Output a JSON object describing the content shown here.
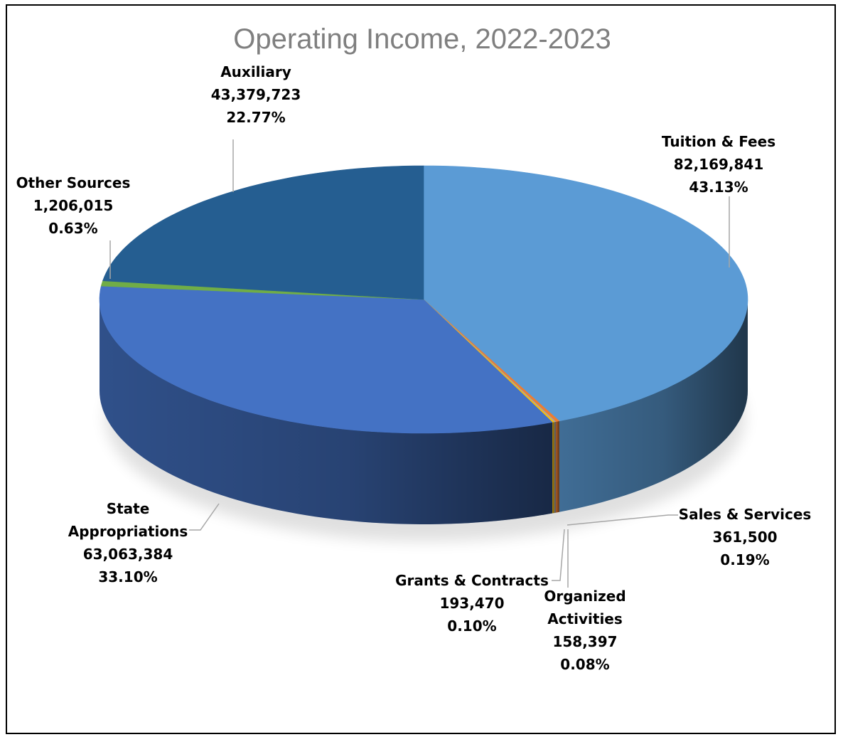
{
  "chart_data": {
    "type": "pie",
    "title": "Operating Income, 2022-2023",
    "slices": [
      {
        "label": "Tuition & Fees",
        "value": "82,169,841",
        "percent": "43.13%",
        "amount": 82169841,
        "share": 43.13,
        "color": "#5b9bd5"
      },
      {
        "label": "Sales & Services",
        "value": "361,500",
        "percent": "0.19%",
        "amount": 361500,
        "share": 0.19,
        "color": "#ed7d31"
      },
      {
        "label": "Organized Activities",
        "value": "158,397",
        "percent": "0.08%",
        "amount": 158397,
        "share": 0.08,
        "color": "#a5a5a5"
      },
      {
        "label": "Grants & Contracts",
        "value": "193,470",
        "percent": "0.10%",
        "amount": 193470,
        "share": 0.1,
        "color": "#ffc000"
      },
      {
        "label": "State Appropriations",
        "value": "63,063,384",
        "percent": "33.10%",
        "amount": 63063384,
        "share": 33.1,
        "color": "#4472c4"
      },
      {
        "label": "Other Sources",
        "value": "1,206,015",
        "percent": "0.63%",
        "amount": 1206015,
        "share": 0.63,
        "color": "#70ad47"
      },
      {
        "label": "Auxiliary",
        "value": "43,379,723",
        "percent": "22.77%",
        "amount": 43379723,
        "share": 22.77,
        "color": "#255e91"
      }
    ]
  }
}
